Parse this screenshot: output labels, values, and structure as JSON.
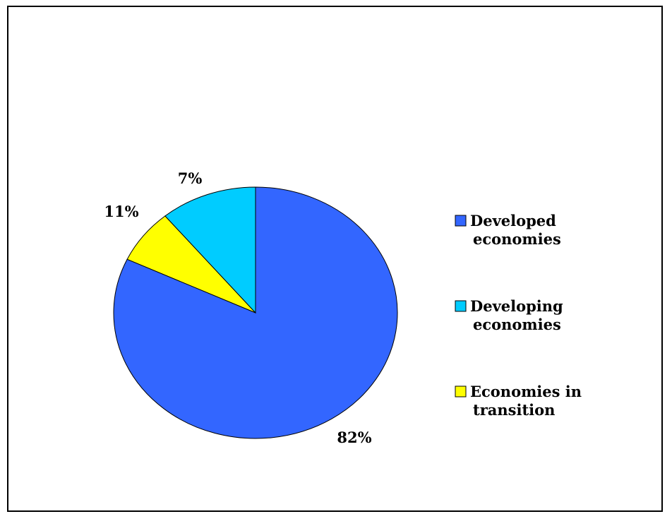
{
  "chart_data": {
    "type": "pie",
    "title": "",
    "slices": [
      {
        "label_lines": [
          "Developed",
          "economies"
        ],
        "value": 82,
        "data_label": "82%",
        "color": "#3366FF"
      },
      {
        "label_lines": [
          "Economies in",
          "transition"
        ],
        "value": 7,
        "data_label": "7%",
        "color": "#FFFF00"
      },
      {
        "label_lines": [
          "Developing",
          "economies"
        ],
        "value": 11,
        "data_label": "11%",
        "color": "#00CCFF"
      }
    ],
    "legend_order": [
      0,
      2,
      1
    ],
    "legend_placement": "right",
    "start_angle": "12 o'clock",
    "direction": "clockwise"
  }
}
